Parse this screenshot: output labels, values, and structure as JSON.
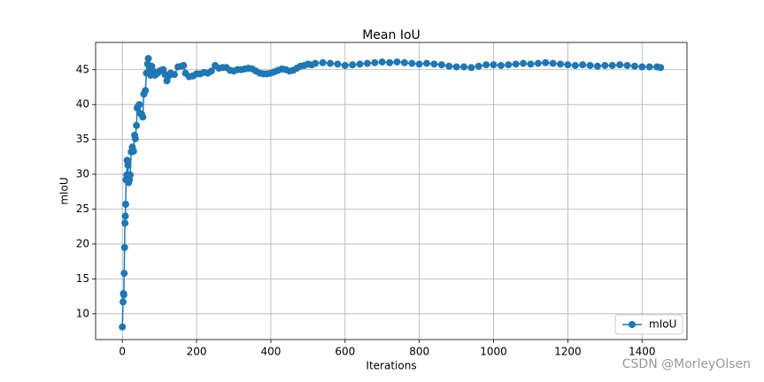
{
  "chart_data": {
    "type": "line",
    "title": "Mean IoU",
    "xlabel": "Iterations",
    "ylabel": "mIoU",
    "x": [
      0,
      2,
      3,
      4,
      5,
      6,
      7,
      8,
      9,
      10,
      12,
      13,
      15,
      17,
      19,
      21,
      24,
      27,
      30,
      33,
      35,
      38,
      40,
      43,
      46,
      49,
      52,
      55,
      58,
      62,
      65,
      68,
      70,
      73,
      76,
      79,
      83,
      88,
      95,
      100,
      105,
      110,
      115,
      120,
      125,
      130,
      140,
      150,
      160,
      165,
      170,
      180,
      190,
      200,
      210,
      220,
      230,
      240,
      250,
      260,
      270,
      280,
      290,
      300,
      310,
      320,
      330,
      340,
      350,
      360,
      370,
      380,
      390,
      400,
      410,
      420,
      430,
      440,
      450,
      460,
      470,
      480,
      490,
      500,
      510,
      520,
      540,
      560,
      580,
      600,
      620,
      640,
      660,
      680,
      700,
      720,
      740,
      760,
      780,
      800,
      820,
      840,
      860,
      880,
      900,
      920,
      940,
      960,
      980,
      1000,
      1020,
      1040,
      1060,
      1080,
      1100,
      1120,
      1140,
      1160,
      1180,
      1200,
      1220,
      1240,
      1260,
      1280,
      1300,
      1320,
      1340,
      1360,
      1380,
      1400,
      1420,
      1440,
      1450
    ],
    "series": [
      {
        "name": "mIoU",
        "color": "#1f77b4",
        "values": [
          8.1,
          11.7,
          12.9,
          12.7,
          15.8,
          19.5,
          23,
          24,
          25.7,
          29.2,
          29.9,
          32,
          31.3,
          28.8,
          29.2,
          29.9,
          33.2,
          33.9,
          33.3,
          35.6,
          35.1,
          37,
          39.5,
          39.8,
          40,
          38.7,
          38.6,
          38.2,
          41.5,
          42,
          44.5,
          45.8,
          46.6,
          45.2,
          44.2,
          45.5,
          44.8,
          44.2,
          44.5,
          44.8,
          44.9,
          45,
          44.3,
          43.4,
          44.1,
          44.5,
          44.3,
          45.4,
          45.5,
          45.6,
          44.5,
          44,
          44.1,
          44.4,
          44.4,
          44.6,
          44.5,
          44.8,
          45.6,
          45.2,
          45.3,
          45.3,
          44.9,
          44.8,
          45.0,
          45.0,
          45.1,
          45.2,
          45.1,
          44.8,
          44.5,
          44.4,
          44.4,
          44.5,
          44.7,
          44.9,
          45.1,
          45.0,
          44.8,
          44.9,
          45.2,
          45.5,
          45.6,
          45.8,
          45.7,
          45.9,
          46,
          45.9,
          45.8,
          45.6,
          45.7,
          45.8,
          45.9,
          46,
          46.1,
          46,
          46.1,
          46,
          45.9,
          45.8,
          45.9,
          45.8,
          45.7,
          45.5,
          45.4,
          45.4,
          45.3,
          45.5,
          45.7,
          45.7,
          45.6,
          45.7,
          45.8,
          45.9,
          45.8,
          45.9,
          46,
          45.9,
          45.8,
          45.7,
          45.6,
          45.7,
          45.6,
          45.5,
          45.6,
          45.6,
          45.7,
          45.6,
          45.5,
          45.4,
          45.4,
          45.4,
          45.3
        ]
      }
    ],
    "xlim": [
      -72,
      1521
    ],
    "xticks": [
      0,
      200,
      400,
      600,
      800,
      1000,
      1200,
      1400
    ],
    "ylim": [
      6.3,
      48.9
    ],
    "yticks": [
      10,
      15,
      20,
      25,
      30,
      35,
      40,
      45
    ],
    "grid": true,
    "legend": "lower right",
    "watermark": "CSDN @MorleyOlsen"
  }
}
